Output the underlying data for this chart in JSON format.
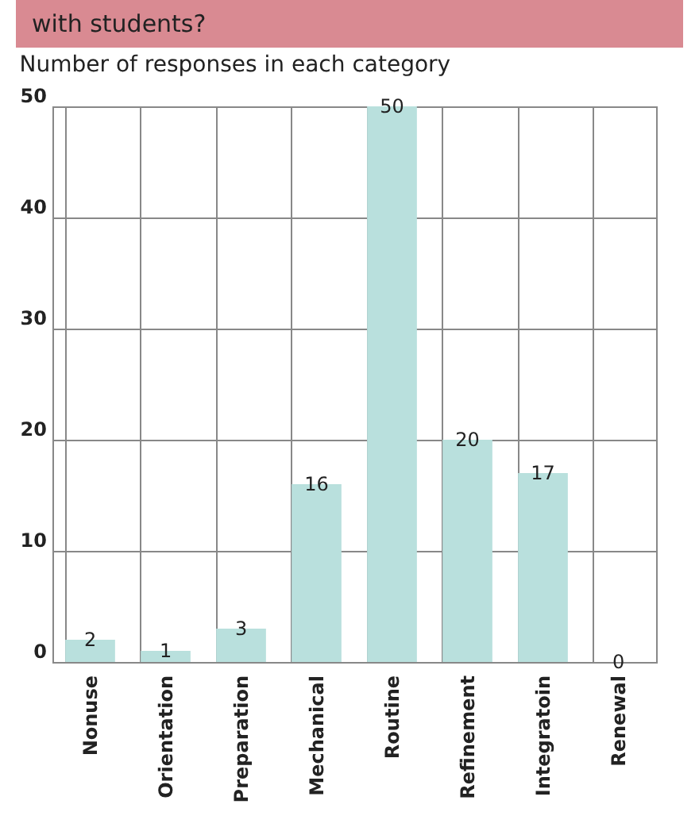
{
  "chart_data": {
    "type": "bar",
    "title": "with students?",
    "subtitle": "Number of responses in each category",
    "categories": [
      "Nonuse",
      "Orientation",
      "Preparation",
      "Mechanical",
      "Routine",
      "Refinement",
      "Integratoin",
      "Renewal"
    ],
    "values": [
      2,
      1,
      3,
      16,
      50,
      20,
      17,
      0
    ],
    "color": "#b9e0dd",
    "ylim": [
      0,
      50
    ],
    "yticks": [
      0,
      10,
      20,
      30,
      40,
      50
    ],
    "grid": true,
    "data_labels": true
  }
}
